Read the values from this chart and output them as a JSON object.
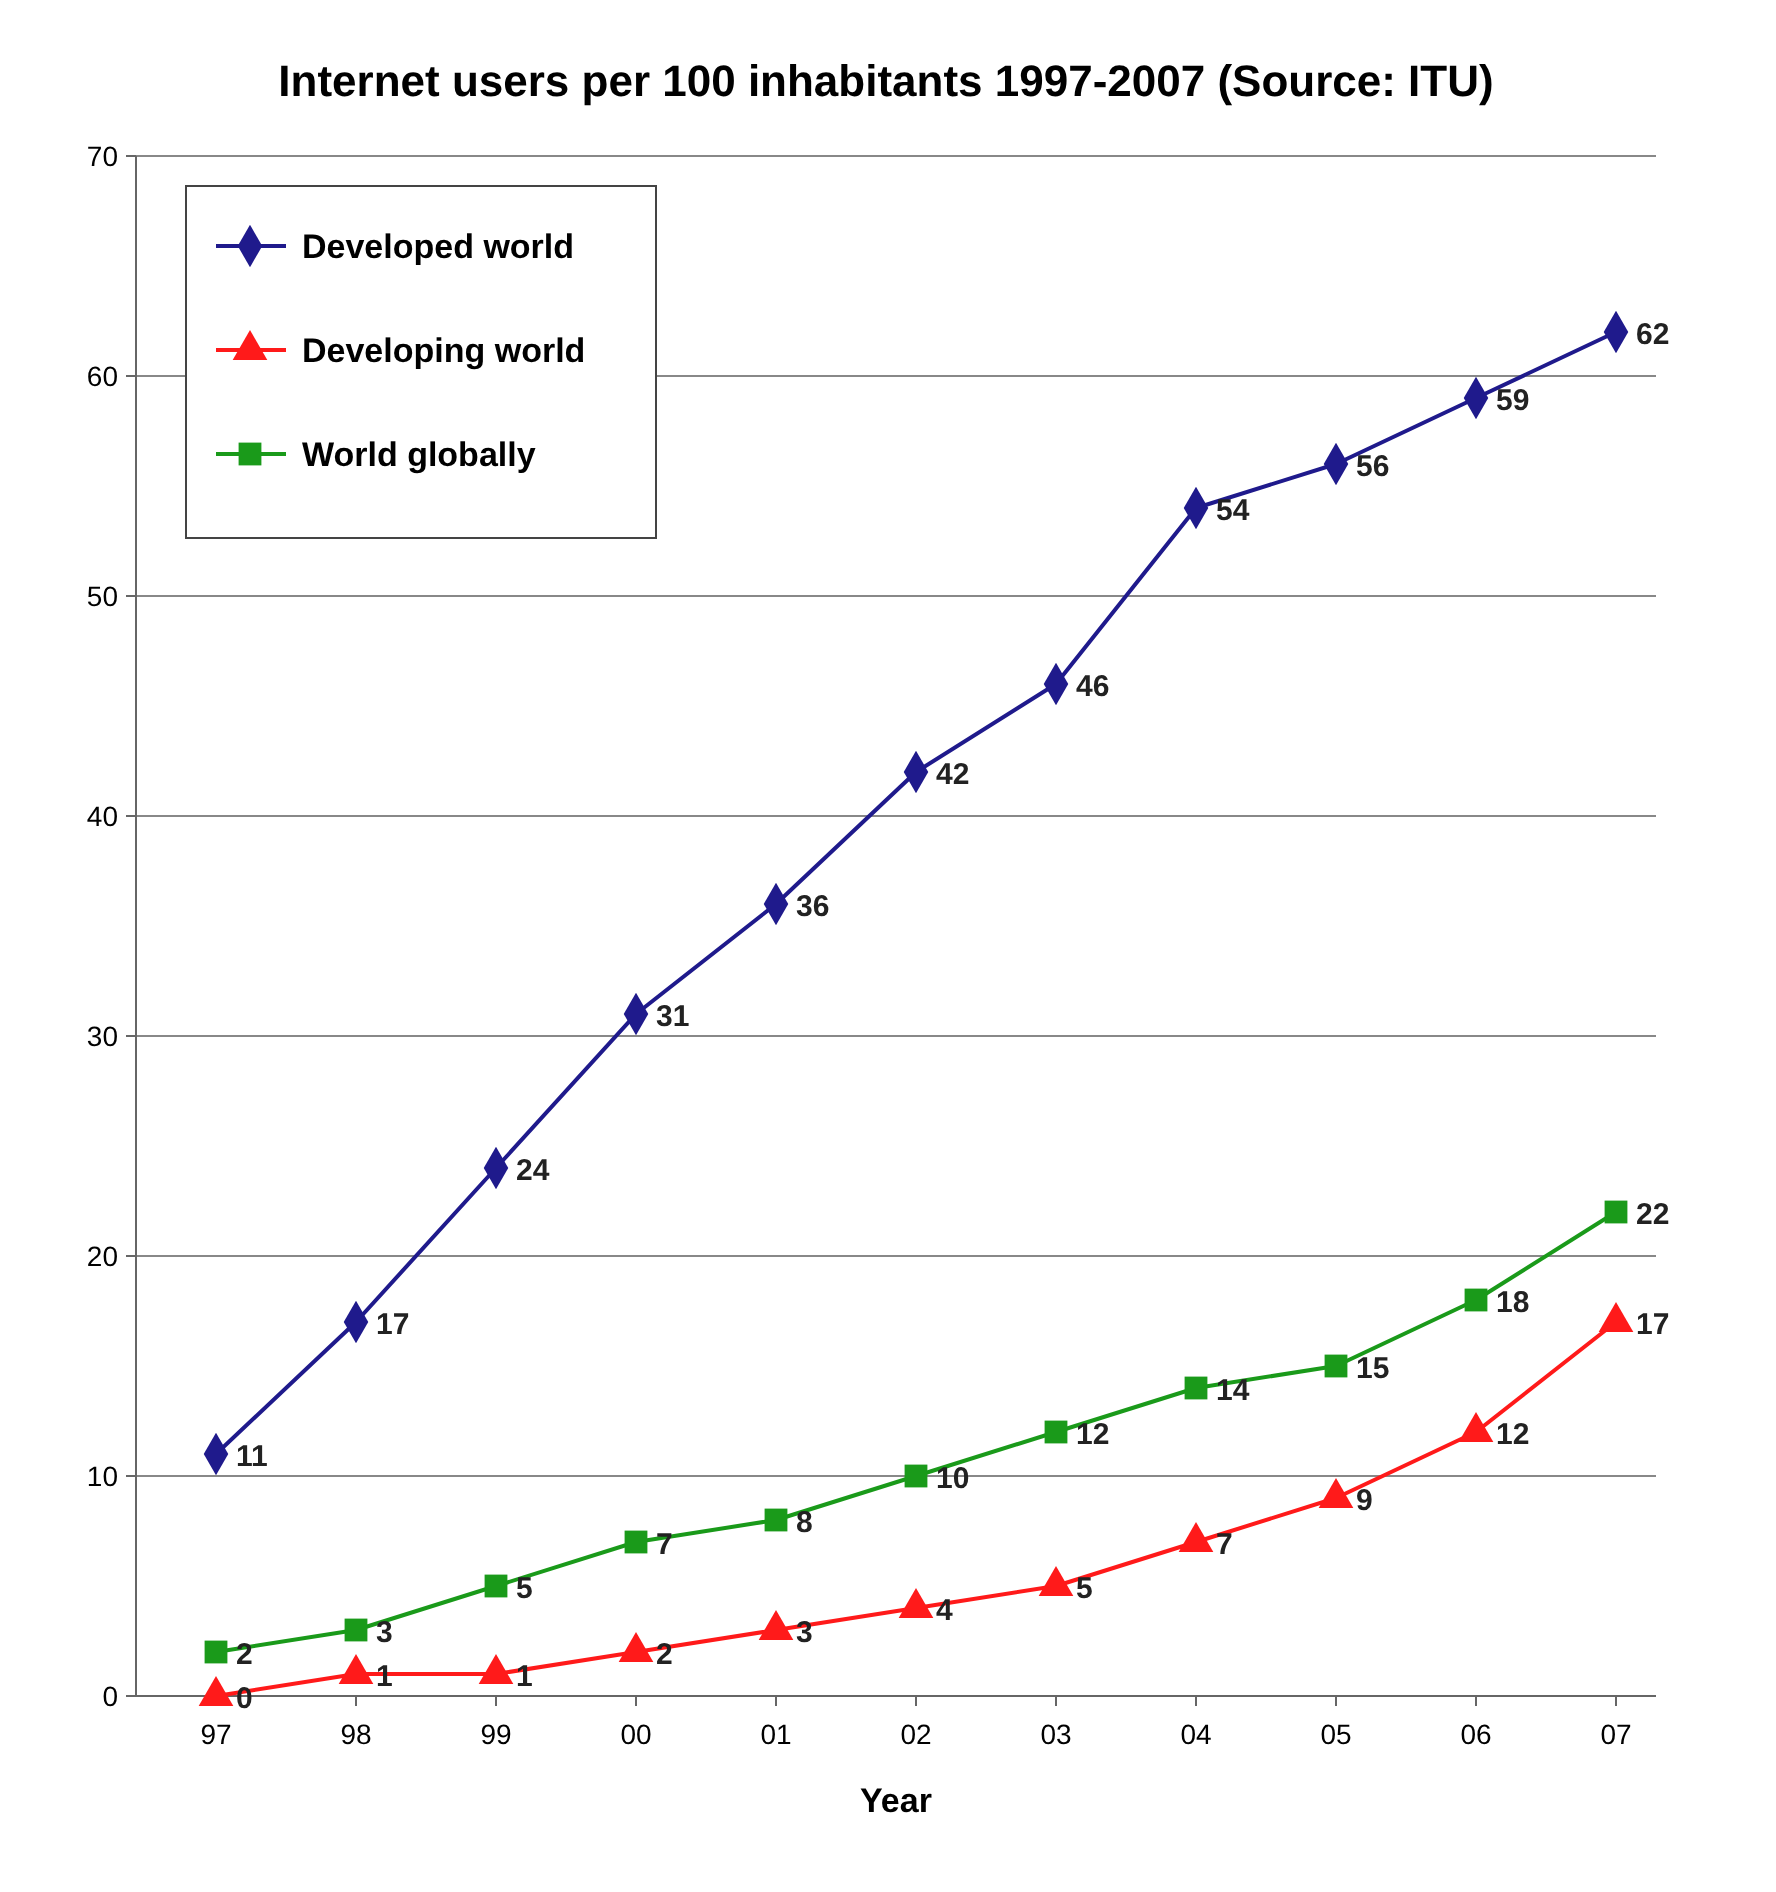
{
  "chart_data": {
    "type": "line",
    "title": "Internet users per 100 inhabitants 1997-2007 (Source: ITU)",
    "xlabel": "Year",
    "categories": [
      "97",
      "98",
      "99",
      "00",
      "01",
      "02",
      "03",
      "04",
      "05",
      "06",
      "07"
    ],
    "series": [
      {
        "name": "Developed world",
        "color": "#1f1a8c",
        "marker": "diamond",
        "values": [
          11,
          17,
          24,
          31,
          36,
          42,
          46,
          54,
          56,
          59,
          62
        ]
      },
      {
        "name": "Developing world",
        "color": "#ff1a1a",
        "marker": "triangle",
        "values": [
          0,
          1,
          1,
          2,
          3,
          4,
          5,
          7,
          9,
          12,
          17
        ]
      },
      {
        "name": "World globally",
        "color": "#1a9a1a",
        "marker": "square",
        "values": [
          2,
          3,
          5,
          7,
          8,
          10,
          12,
          14,
          15,
          18,
          22
        ]
      }
    ],
    "ylim": [
      0,
      70
    ],
    "yticks": [
      0,
      10,
      20,
      30,
      40,
      50,
      60,
      70
    ],
    "grid": "y",
    "legend": "top left",
    "data_labels": true,
    "line_style": "solid"
  }
}
